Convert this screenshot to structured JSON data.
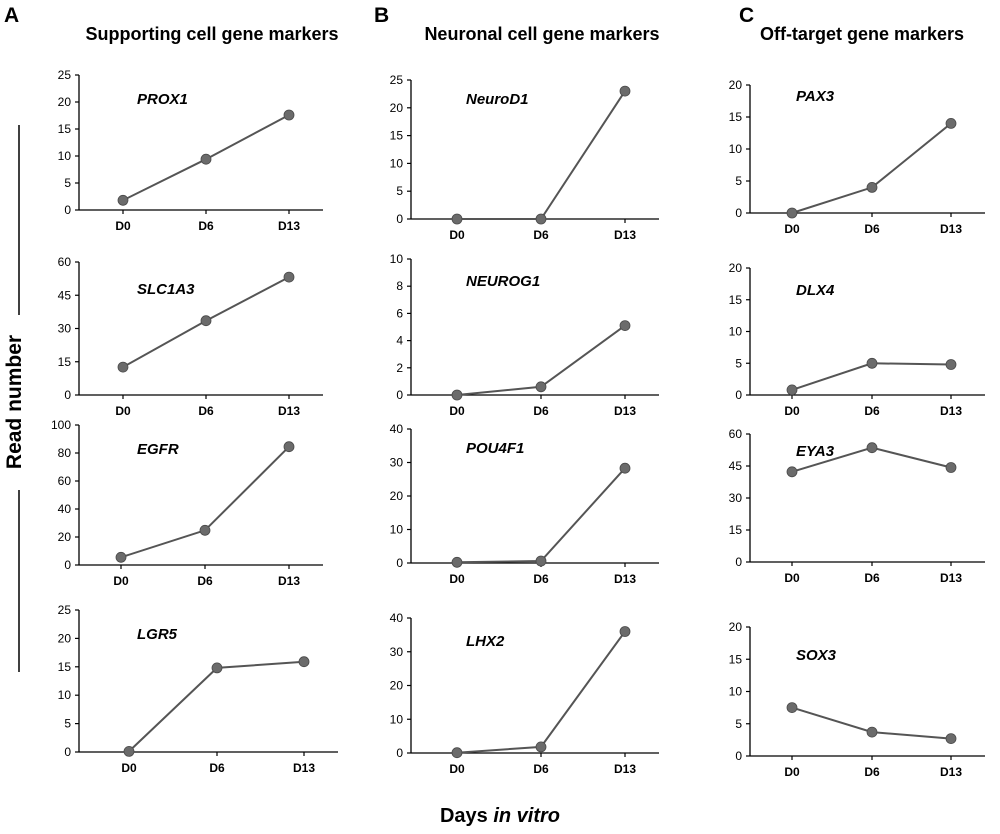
{
  "figure": {
    "panels": [
      {
        "letter": "A",
        "title": "Supporting cell gene markers"
      },
      {
        "letter": "B",
        "title": "Neuronal cell gene markers"
      },
      {
        "letter": "C",
        "title": "Off-target gene markers"
      }
    ],
    "ylabel": "Read number",
    "xlabel": {
      "prefix": "Days ",
      "italic": "in vitro"
    }
  },
  "colors": {
    "line": "#555555",
    "marker": "#6b6b6b",
    "axis": "#000000"
  },
  "chart_data": [
    {
      "type": "line",
      "panel": "A",
      "title": "PROX1",
      "categories": [
        "D0",
        "D6",
        "D13"
      ],
      "values": [
        1.8,
        9.4,
        17.6
      ],
      "ylim": [
        0,
        25
      ],
      "yticks": [
        0,
        5,
        10,
        15,
        20,
        25
      ]
    },
    {
      "type": "line",
      "panel": "A",
      "title": "SLC1A3",
      "categories": [
        "D0",
        "D6",
        "D13"
      ],
      "values": [
        12.6,
        33.5,
        53.2
      ],
      "ylim": [
        0,
        60
      ],
      "yticks": [
        0,
        15,
        30,
        45,
        60
      ]
    },
    {
      "type": "line",
      "panel": "A",
      "title": "EGFR",
      "categories": [
        "D0",
        "D6",
        "D13"
      ],
      "values": [
        5.5,
        24.8,
        84.5
      ],
      "ylim": [
        0,
        100
      ],
      "yticks": [
        0,
        20,
        40,
        60,
        80,
        100
      ]
    },
    {
      "type": "line",
      "panel": "A",
      "title": "LGR5",
      "categories": [
        "D0",
        "D6",
        "D13"
      ],
      "values": [
        0.1,
        14.8,
        15.9
      ],
      "ylim": [
        0,
        25
      ],
      "yticks": [
        0,
        5,
        10,
        15,
        20,
        25
      ]
    },
    {
      "type": "line",
      "panel": "B",
      "title": "NeuroD1",
      "categories": [
        "D0",
        "D6",
        "D13"
      ],
      "values": [
        0,
        0,
        23
      ],
      "ylim": [
        0,
        25
      ],
      "yticks": [
        0,
        5,
        10,
        15,
        20,
        25
      ]
    },
    {
      "type": "line",
      "panel": "B",
      "title": "NEUROG1",
      "categories": [
        "D0",
        "D6",
        "D13"
      ],
      "values": [
        0,
        0.6,
        5.1
      ],
      "ylim": [
        0,
        10
      ],
      "yticks": [
        0,
        2,
        4,
        6,
        8,
        10
      ]
    },
    {
      "type": "line",
      "panel": "B",
      "title": "POU4F1",
      "categories": [
        "D0",
        "D6",
        "D13"
      ],
      "values": [
        0.2,
        0.6,
        28.3
      ],
      "ylim": [
        0,
        40
      ],
      "yticks": [
        0,
        10,
        20,
        30,
        40
      ]
    },
    {
      "type": "line",
      "panel": "B",
      "title": "LHX2",
      "categories": [
        "D0",
        "D6",
        "D13"
      ],
      "values": [
        0.1,
        1.8,
        36
      ],
      "ylim": [
        0,
        40
      ],
      "yticks": [
        0,
        10,
        20,
        30,
        40
      ]
    },
    {
      "type": "line",
      "panel": "C",
      "title": "PAX3",
      "categories": [
        "D0",
        "D6",
        "D13"
      ],
      "values": [
        0,
        4,
        14
      ],
      "ylim": [
        0,
        20
      ],
      "yticks": [
        0,
        5,
        10,
        15,
        20
      ]
    },
    {
      "type": "line",
      "panel": "C",
      "title": "DLX4",
      "categories": [
        "D0",
        "D6",
        "D13"
      ],
      "values": [
        0.8,
        5,
        4.8
      ],
      "ylim": [
        0,
        20
      ],
      "yticks": [
        0,
        5,
        10,
        15,
        20
      ]
    },
    {
      "type": "line",
      "panel": "C",
      "title": "EYA3",
      "categories": [
        "D0",
        "D6",
        "D13"
      ],
      "values": [
        42.3,
        53.6,
        44.3
      ],
      "ylim": [
        0,
        60
      ],
      "yticks": [
        0,
        15,
        30,
        45,
        60
      ]
    },
    {
      "type": "line",
      "panel": "C",
      "title": "SOX3",
      "categories": [
        "D0",
        "D6",
        "D13"
      ],
      "values": [
        7.5,
        3.7,
        2.7
      ],
      "ylim": [
        0,
        20
      ],
      "yticks": [
        0,
        5,
        10,
        15,
        20
      ]
    }
  ]
}
